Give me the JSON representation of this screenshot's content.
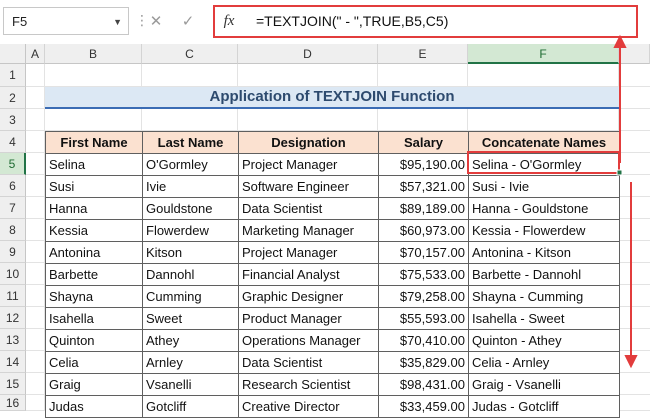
{
  "formula_bar": {
    "name_box": "F5",
    "cancel_icon": "✕",
    "enter_icon": "✓",
    "fx_label": "fx",
    "formula": "=TEXTJOIN(\" - \",TRUE,B5,C5)"
  },
  "columns": [
    "A",
    "B",
    "C",
    "D",
    "E",
    "F"
  ],
  "rows": [
    "1",
    "2",
    "3",
    "4",
    "5",
    "6",
    "7",
    "8",
    "9",
    "10",
    "11",
    "12",
    "13",
    "14",
    "15",
    "16"
  ],
  "selected_cell": "F5",
  "title": "Application of TEXTJOIN Function",
  "table": {
    "headers": [
      "First Name",
      "Last Name",
      "Designation",
      "Salary",
      "Concatenate Names"
    ],
    "rows": [
      [
        "Selina",
        "O'Gormley",
        "Project Manager",
        "$95,190.00",
        "Selina - O'Gormley"
      ],
      [
        "Susi",
        "Ivie",
        "Software Engineer",
        "$57,321.00",
        "Susi - Ivie"
      ],
      [
        "Hanna",
        "Gouldstone",
        "Data Scientist",
        "$89,189.00",
        "Hanna - Gouldstone"
      ],
      [
        "Kessia",
        "Flowerdew",
        "Marketing Manager",
        "$60,973.00",
        "Kessia - Flowerdew"
      ],
      [
        "Antonina",
        "Kitson",
        "Project Manager",
        "$70,157.00",
        "Antonina - Kitson"
      ],
      [
        "Barbette",
        "Dannohl",
        "Financial Analyst",
        "$75,533.00",
        "Barbette - Dannohl"
      ],
      [
        "Shayna",
        "Cumming",
        "Graphic Designer",
        "$79,258.00",
        "Shayna - Cumming"
      ],
      [
        "Isahella",
        "Sweet",
        "Product Manager",
        "$55,593.00",
        "Isahella - Sweet"
      ],
      [
        "Quinton",
        "Athey",
        "Operations Manager",
        "$70,410.00",
        "Quinton - Athey"
      ],
      [
        "Celia",
        "Arnley",
        "Data Scientist",
        "$35,829.00",
        "Celia - Arnley"
      ],
      [
        "Graig",
        "Vsanelli",
        "Research Scientist",
        "$98,431.00",
        "Graig - Vsanelli"
      ],
      [
        "Judas",
        "Gotcliff",
        "Creative Director",
        "$33,459.00",
        "Judas - Gotcliff"
      ]
    ]
  },
  "colors": {
    "annotation": "#e23c3c",
    "header_fill": "#fbe1d0",
    "title_fill": "#dce8f4",
    "title_rule": "#3b6cb4",
    "selection": "#217346"
  }
}
